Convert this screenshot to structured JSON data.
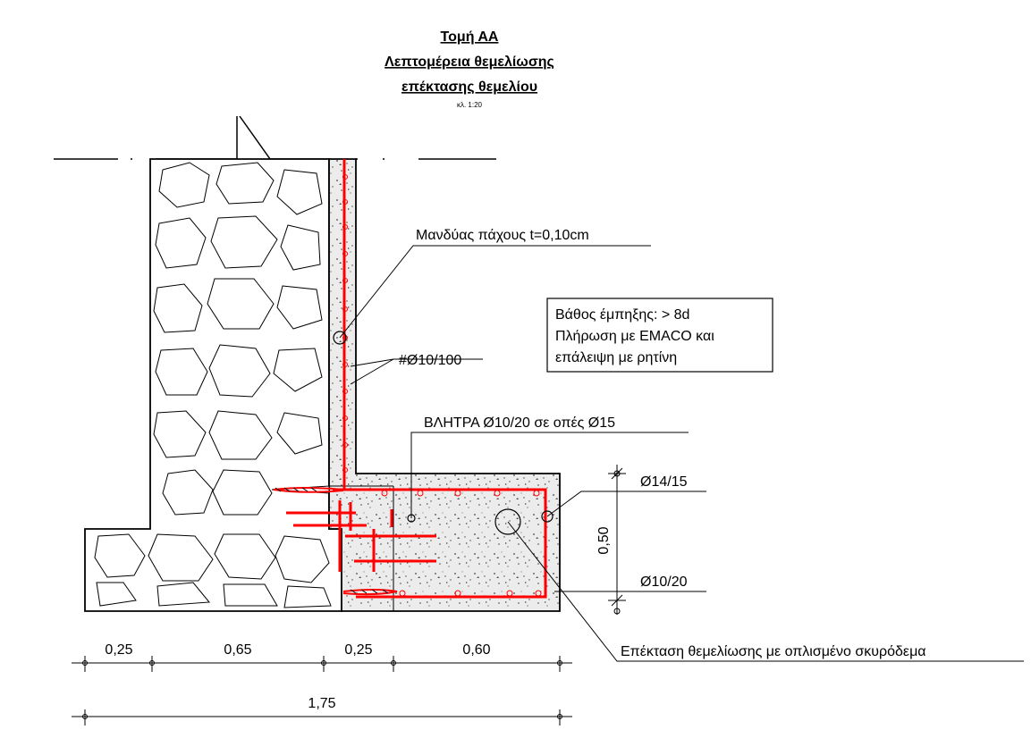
{
  "title": {
    "line1": "Τομή ΑΑ",
    "line2": "Λεπτομέρεια θεμελίωσης",
    "line3": "επέκτασης θεμελίου",
    "scale": "κλ. 1:20"
  },
  "labels": {
    "jacket": "Μανδύας  πάχους t=0,10cm",
    "mesh": "#Ø10/100",
    "dowels": "ΒΛΗΤΡΑ Ø10/20 σε οπές Ø15",
    "top_bars": "Ø14/15",
    "bottom_bars": "Ø10/20",
    "extension": "Επέκταση θεμελίωσης με οπλισμένο σκυρόδεμα",
    "height": "0,50"
  },
  "note": {
    "line1": "Βάθος έμπηξης: > 8d",
    "line2": "Πλήρωση με EMACO και",
    "line3": "επάλειψη με ρητίνη"
  },
  "dimensions": {
    "seg1": "0,25",
    "seg2": "0,65",
    "seg3": "0,25",
    "seg4": "0,60",
    "total": "1,75"
  },
  "colors": {
    "rebar": "#ff0000",
    "line": "#000000",
    "concrete": "#ececec"
  }
}
